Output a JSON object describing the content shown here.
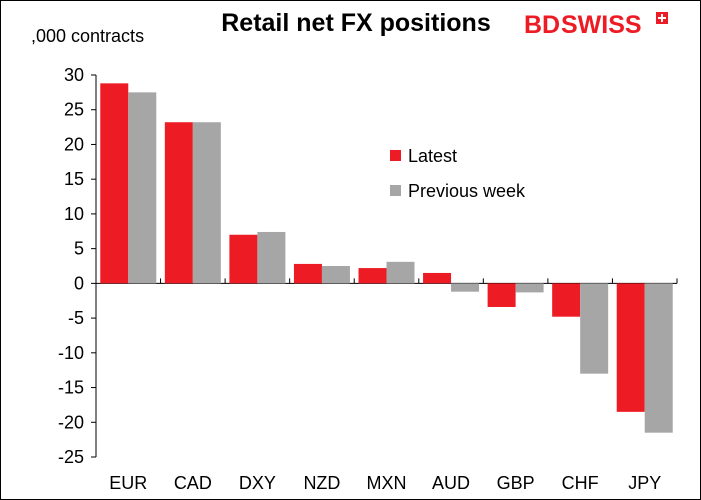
{
  "chart_data": {
    "type": "bar",
    "title": "Retail net FX positions",
    "ylabel": ",000 contracts",
    "xlabel": "",
    "brand": {
      "text_bd": "BD",
      "text_swiss": "SWISS",
      "color": "#ed1c24"
    },
    "categories": [
      "EUR",
      "CAD",
      "DXY",
      "NZD",
      "MXN",
      "AUD",
      "GBP",
      "CHF",
      "JPY"
    ],
    "series": [
      {
        "name": "Latest",
        "color": "#ed1c24",
        "values": [
          28.8,
          23.2,
          7.0,
          2.8,
          2.2,
          1.5,
          -3.4,
          -4.8,
          -18.5
        ]
      },
      {
        "name": "Previous week",
        "color": "#a6a6a6",
        "values": [
          27.5,
          23.2,
          7.4,
          2.5,
          3.1,
          -1.2,
          -1.3,
          -13.0,
          -21.5
        ]
      }
    ],
    "ylim": [
      -25,
      30
    ],
    "yticks": [
      30,
      25,
      20,
      15,
      10,
      5,
      0,
      -5,
      -10,
      -15,
      -20,
      -25
    ],
    "ytick_labels": [
      "30",
      "25",
      "20",
      "15",
      "10",
      "5",
      "0",
      "-5",
      "-10",
      "-15",
      "-20",
      "-25"
    ],
    "grid": false,
    "legend_position": "center-right"
  }
}
